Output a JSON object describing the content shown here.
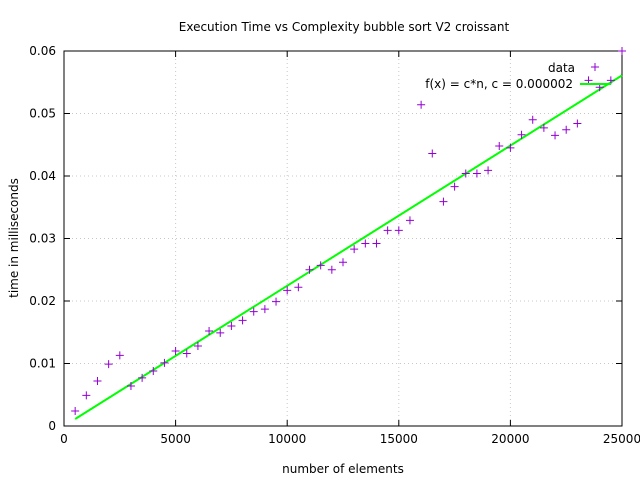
{
  "chart_data": {
    "type": "scatter",
    "title": "Execution Time vs Complexity bubble sort V2 croissant",
    "xlabel": "number of elements",
    "ylabel": "time in milliseconds",
    "xlim": [
      0,
      25000
    ],
    "ylim": [
      0,
      0.06
    ],
    "x_ticks": [
      0,
      5000,
      10000,
      15000,
      20000,
      25000
    ],
    "x_tick_labels": [
      "0",
      "5000",
      "10000",
      "15000",
      "20000",
      "25000"
    ],
    "y_ticks": [
      0,
      0.01,
      0.02,
      0.03,
      0.04,
      0.05,
      0.06
    ],
    "y_tick_labels": [
      "0",
      "0.01",
      "0.02",
      "0.03",
      "0.04",
      "0.05",
      "0.06"
    ],
    "grid": true,
    "legend_position": "top-right",
    "colors": {
      "data": "#9400d3",
      "fit": "#00ff00"
    },
    "series": [
      {
        "name": "data",
        "kind": "points",
        "marker": "plus",
        "x": [
          500,
          1000,
          1500,
          2000,
          2500,
          3000,
          3500,
          4000,
          4500,
          5000,
          5500,
          6000,
          6500,
          7000,
          7500,
          8000,
          8500,
          9000,
          9500,
          10000,
          10500,
          11000,
          11500,
          12000,
          12500,
          13000,
          13500,
          14000,
          14500,
          15000,
          15500,
          16000,
          16500,
          17000,
          17500,
          18000,
          18500,
          19000,
          19500,
          20000,
          20500,
          21000,
          21500,
          22000,
          22500,
          23000,
          23500,
          24000,
          24500,
          25000
        ],
        "y": [
          0.0024,
          0.0049,
          0.0072,
          0.0099,
          0.0113,
          0.0064,
          0.0077,
          0.0088,
          0.0101,
          0.012,
          0.0116,
          0.0128,
          0.0152,
          0.0149,
          0.016,
          0.0169,
          0.0183,
          0.0187,
          0.0199,
          0.0217,
          0.0222,
          0.025,
          0.0257,
          0.025,
          0.0262,
          0.0283,
          0.0292,
          0.0292,
          0.0313,
          0.0313,
          0.0329,
          0.0514,
          0.0436,
          0.0359,
          0.0383,
          0.0404,
          0.0404,
          0.0409,
          0.0448,
          0.0445,
          0.0466,
          0.049,
          0.0477,
          0.0465,
          0.0474,
          0.0484,
          0.0553,
          0.0542,
          0.0553,
          0.06
        ]
      },
      {
        "name": "f(x) = c*n, c = 0.000002",
        "kind": "line",
        "x": [
          500,
          25000
        ],
        "y": [
          0.00112,
          0.0561
        ]
      }
    ]
  }
}
